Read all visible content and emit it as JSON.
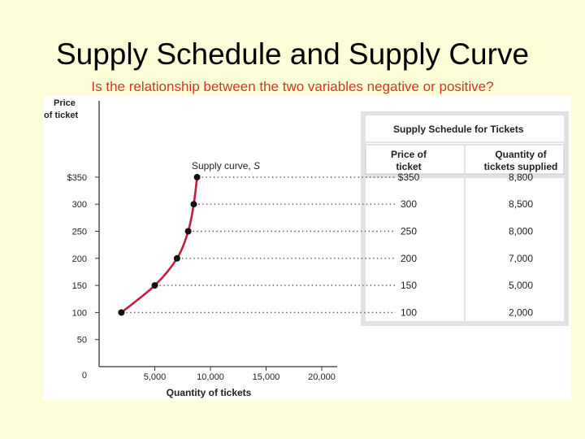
{
  "slide": {
    "title": "Supply Schedule and Supply Curve",
    "subtitle": "Is the relationship between the two variables negative or positive?"
  },
  "colors": {
    "background": "#fdfdd8",
    "subtitle": "#cc3a22",
    "curve": "#c41e3a",
    "table_frame": "#e3e3e3",
    "table_border": "#c9c9c9"
  },
  "chart_data": {
    "type": "line",
    "ylabel": "Price of ticket",
    "xlabel": "Quantity of tickets",
    "curve_label": "Supply curve, S",
    "x_ticks": [
      "5,000",
      "10,000",
      "15,000",
      "20,000"
    ],
    "x_tick_values": [
      5000,
      10000,
      15000,
      20000
    ],
    "y_ticks": [
      "0",
      "50",
      "100",
      "150",
      "200",
      "250",
      "300",
      "$350"
    ],
    "y_tick_values": [
      0,
      50,
      100,
      150,
      200,
      250,
      300,
      350
    ],
    "xlim": [
      0,
      22000
    ],
    "ylim": [
      0,
      400
    ],
    "points": [
      {
        "x": 2000,
        "y": 100
      },
      {
        "x": 5000,
        "y": 150
      },
      {
        "x": 7000,
        "y": 200
      },
      {
        "x": 8000,
        "y": 250
      },
      {
        "x": 8500,
        "y": 300
      },
      {
        "x": 8800,
        "y": 350
      }
    ]
  },
  "table": {
    "title": "Supply Schedule for Tickets",
    "headers": [
      "Price of ticket",
      "Quantity of tickets supplied"
    ],
    "rows": [
      [
        "$350",
        "8,800"
      ],
      [
        "300",
        "8,500"
      ],
      [
        "250",
        "8,000"
      ],
      [
        "200",
        "7,000"
      ],
      [
        "150",
        "5,000"
      ],
      [
        "100",
        "2,000"
      ]
    ]
  }
}
